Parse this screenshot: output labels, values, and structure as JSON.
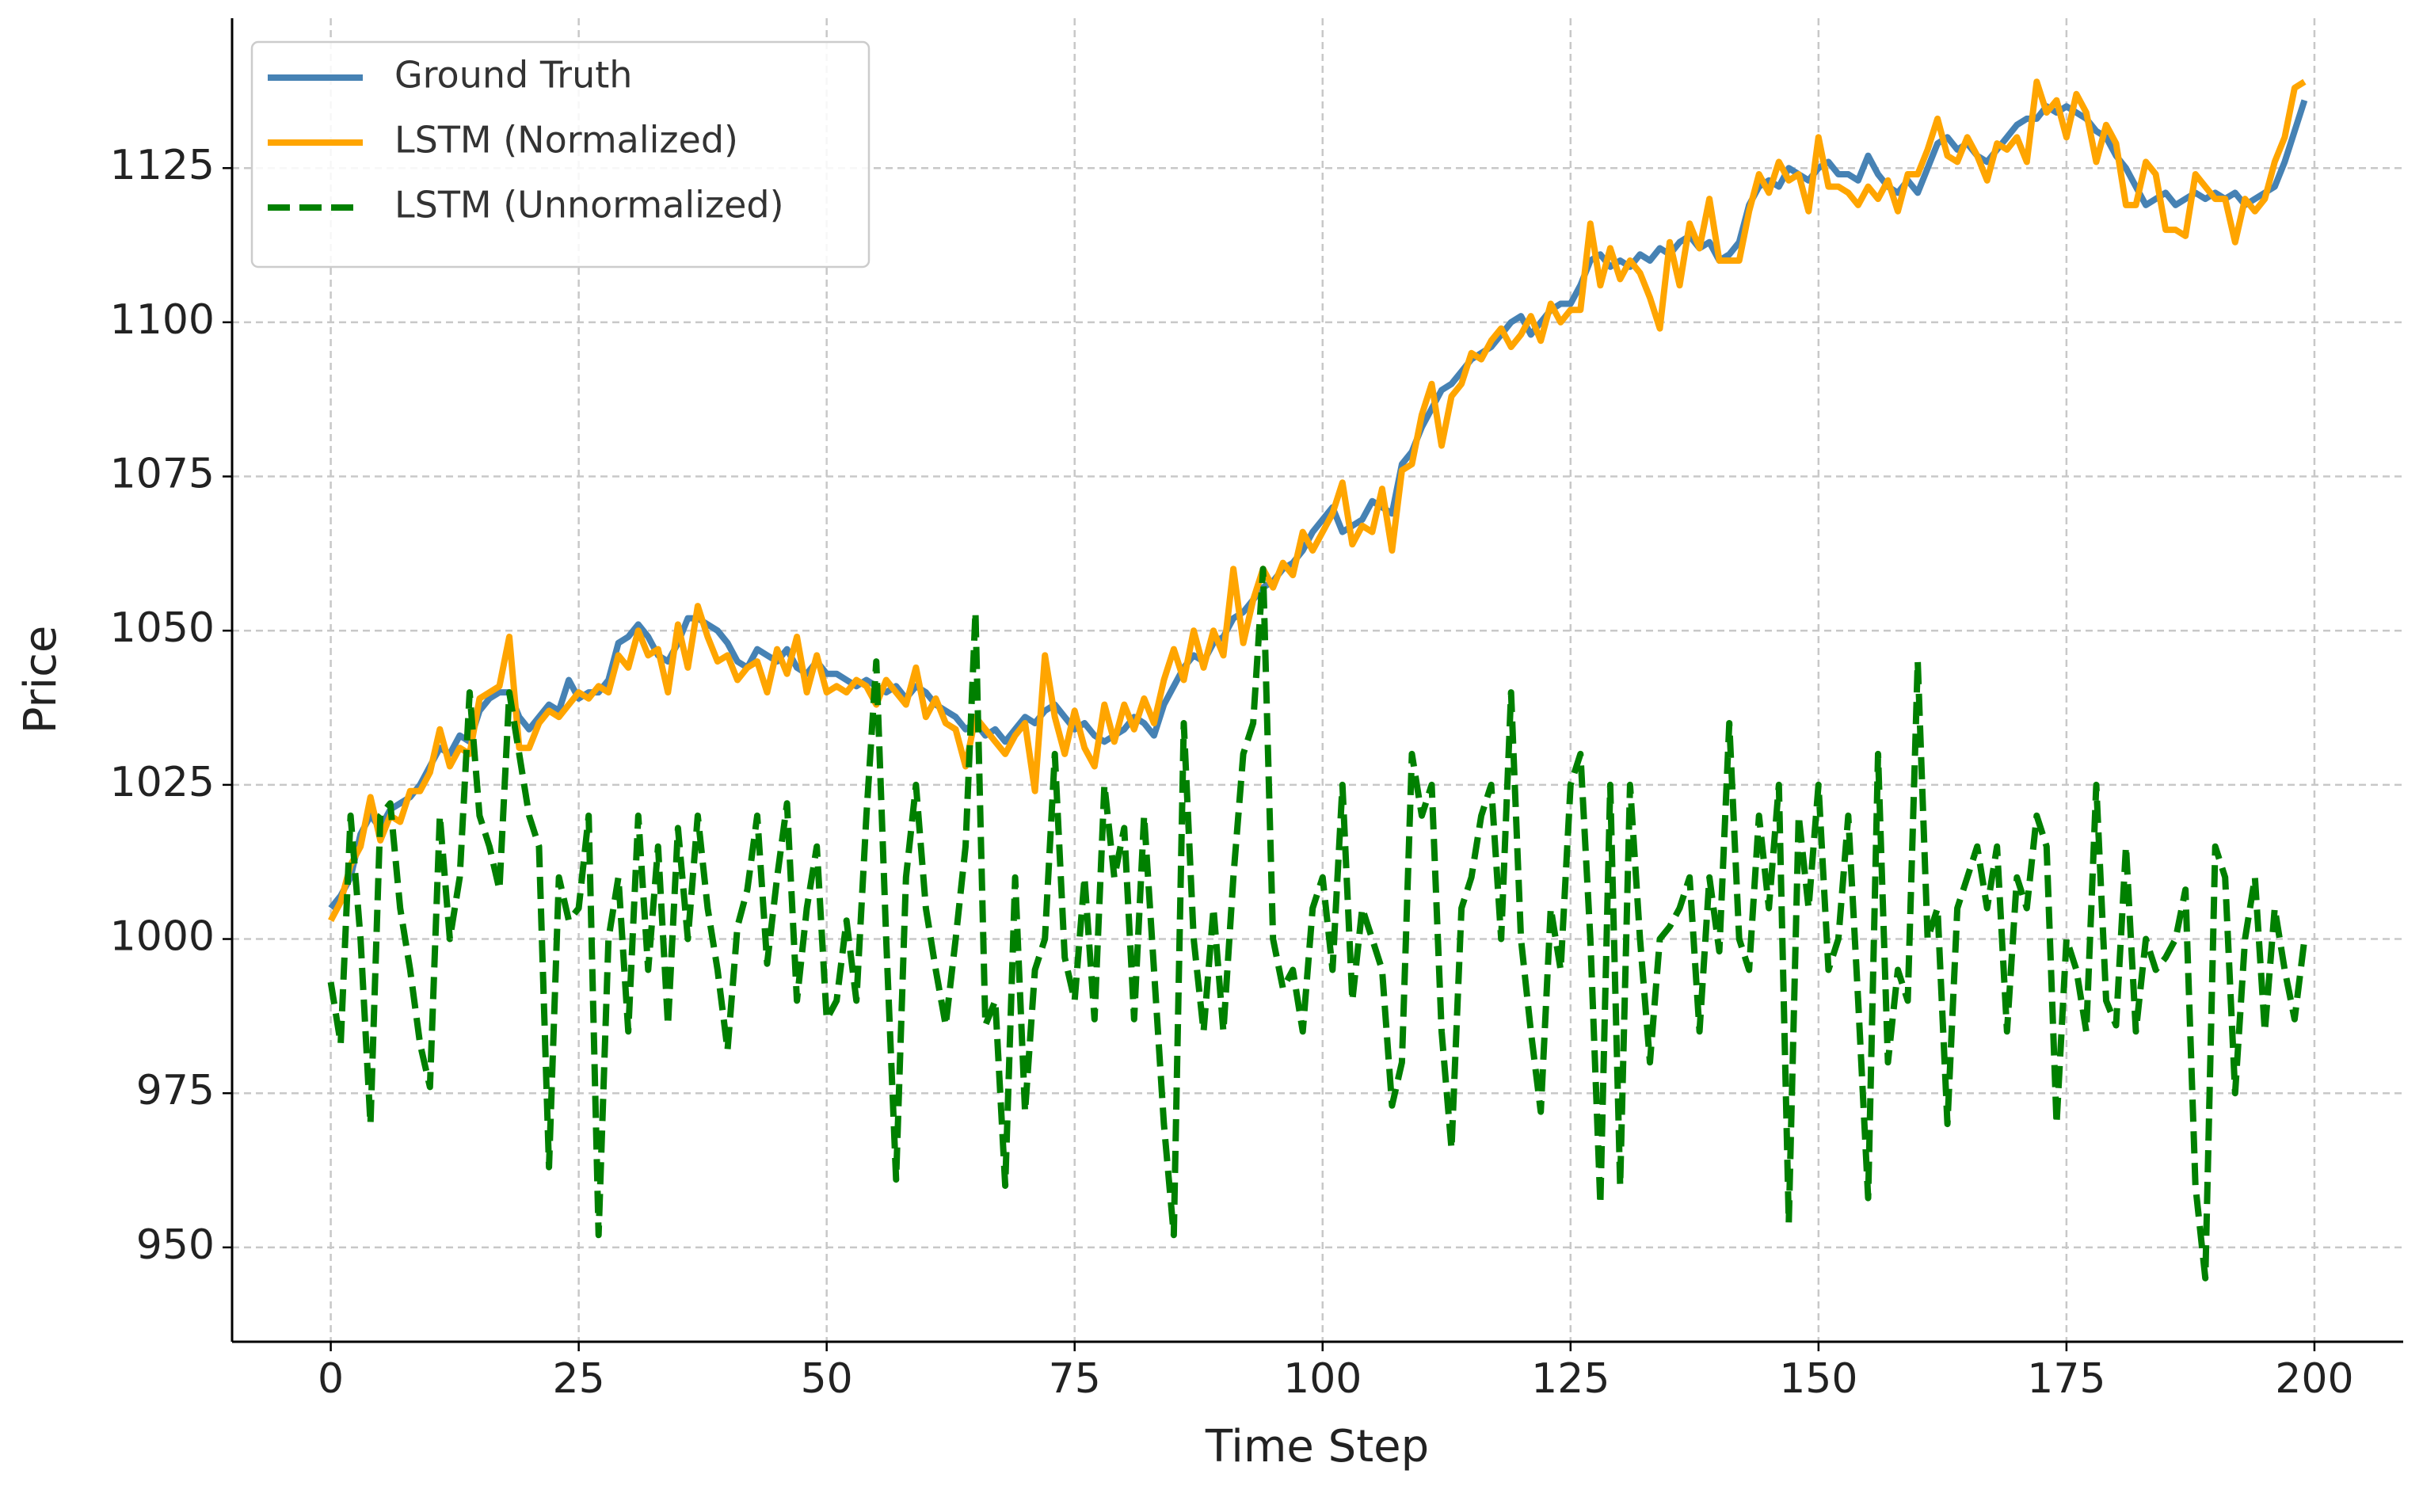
{
  "chart_data": {
    "type": "line",
    "xlabel": "Time Step",
    "ylabel": "Price",
    "xlim": [
      -9.95,
      208.95
    ],
    "ylim": [
      934.7,
      1149.3
    ],
    "xticks": [
      0,
      25,
      50,
      75,
      100,
      125,
      150,
      175,
      200
    ],
    "yticks": [
      950,
      975,
      1000,
      1025,
      1050,
      1075,
      1100,
      1125
    ],
    "grid": true,
    "legend": "upper left",
    "x": [
      0,
      1,
      2,
      3,
      4,
      5,
      6,
      7,
      8,
      9,
      10,
      11,
      12,
      13,
      14,
      15,
      16,
      17,
      18,
      19,
      20,
      21,
      22,
      23,
      24,
      25,
      26,
      27,
      28,
      29,
      30,
      31,
      32,
      33,
      34,
      35,
      36,
      37,
      38,
      39,
      40,
      41,
      42,
      43,
      44,
      45,
      46,
      47,
      48,
      49,
      50,
      51,
      52,
      53,
      54,
      55,
      56,
      57,
      58,
      59,
      60,
      61,
      62,
      63,
      64,
      65,
      66,
      67,
      68,
      69,
      70,
      71,
      72,
      73,
      74,
      75,
      76,
      77,
      78,
      79,
      80,
      81,
      82,
      83,
      84,
      85,
      86,
      87,
      88,
      89,
      90,
      91,
      92,
      93,
      94,
      95,
      96,
      97,
      98,
      99,
      100,
      101,
      102,
      103,
      104,
      105,
      106,
      107,
      108,
      109,
      110,
      111,
      112,
      113,
      114,
      115,
      116,
      117,
      118,
      119,
      120,
      121,
      122,
      123,
      124,
      125,
      126,
      127,
      128,
      129,
      130,
      131,
      132,
      133,
      134,
      135,
      136,
      137,
      138,
      139,
      140,
      141,
      142,
      143,
      144,
      145,
      146,
      147,
      148,
      149,
      150,
      151,
      152,
      153,
      154,
      155,
      156,
      157,
      158,
      159,
      160,
      161,
      162,
      163,
      164,
      165,
      166,
      167,
      168,
      169,
      170,
      171,
      172,
      173,
      174,
      175,
      176,
      177,
      178,
      179,
      180,
      181,
      182,
      183,
      184,
      185,
      186,
      187,
      188,
      189,
      190,
      191,
      192,
      193,
      194,
      195,
      196,
      197,
      198,
      199
    ],
    "series": [
      {
        "name": "Ground Truth",
        "color": "#4682b4",
        "dash": "solid",
        "values": [
          1005,
          1007,
          1010,
          1017,
          1020,
          1018,
          1021,
          1022,
          1023,
          1025,
          1028,
          1031,
          1030,
          1033,
          1032,
          1037,
          1039,
          1040,
          1040,
          1036,
          1034,
          1036,
          1038,
          1037,
          1042,
          1039,
          1040,
          1040,
          1042,
          1048,
          1049,
          1051,
          1049,
          1046,
          1045,
          1048,
          1052,
          1052,
          1051,
          1050,
          1048,
          1045,
          1044,
          1047,
          1046,
          1045,
          1047,
          1044,
          1043,
          1045,
          1043,
          1043,
          1042,
          1041,
          1042,
          1041,
          1040,
          1041,
          1039,
          1041,
          1040,
          1038,
          1037,
          1036,
          1034,
          1035,
          1033,
          1034,
          1032,
          1034,
          1036,
          1035,
          1037,
          1038,
          1036,
          1034,
          1035,
          1033,
          1032,
          1033,
          1034,
          1036,
          1035,
          1033,
          1038,
          1041,
          1044,
          1046,
          1045,
          1048,
          1049,
          1052,
          1053,
          1055,
          1057,
          1058,
          1060,
          1061,
          1063,
          1066,
          1068,
          1070,
          1066,
          1067,
          1068,
          1071,
          1070,
          1069,
          1077,
          1079,
          1083,
          1086,
          1089,
          1090,
          1092,
          1094,
          1095,
          1096,
          1098,
          1100,
          1101,
          1098,
          1100,
          1102,
          1103,
          1103,
          1106,
          1110,
          1111,
          1109,
          1110,
          1109,
          1111,
          1110,
          1112,
          1111,
          1113,
          1114,
          1112,
          1113,
          1110,
          1111,
          1113,
          1119,
          1122,
          1123,
          1122,
          1125,
          1124,
          1123,
          1125,
          1126,
          1124,
          1124,
          1123,
          1127,
          1124,
          1122,
          1121,
          1123,
          1121,
          1125,
          1129,
          1130,
          1128,
          1129,
          1127,
          1126,
          1128,
          1130,
          1132,
          1133,
          1133,
          1135,
          1134,
          1135,
          1134,
          1133,
          1131,
          1130,
          1127,
          1125,
          1122,
          1119,
          1120,
          1121,
          1119,
          1120,
          1121,
          1120,
          1121,
          1120,
          1121,
          1119,
          1120,
          1121,
          1122,
          1126,
          1131,
          1136
        ]
      },
      {
        "name": "LSTM (Normalized)",
        "color": "#ffa500",
        "dash": "solid",
        "values": [
          1003,
          1006,
          1012,
          1015,
          1023,
          1016,
          1020,
          1019,
          1024,
          1024,
          1027,
          1034,
          1028,
          1031,
          1030,
          1039,
          1040,
          1041,
          1049,
          1031,
          1031,
          1035,
          1037,
          1036,
          1038,
          1040,
          1039,
          1041,
          1040,
          1046,
          1044,
          1050,
          1046,
          1047,
          1040,
          1051,
          1044,
          1054,
          1049,
          1045,
          1046,
          1042,
          1044,
          1045,
          1040,
          1047,
          1043,
          1049,
          1040,
          1046,
          1040,
          1041,
          1040,
          1042,
          1041,
          1038,
          1042,
          1040,
          1038,
          1044,
          1036,
          1039,
          1035,
          1034,
          1028,
          1036,
          1034,
          1032,
          1030,
          1033,
          1035,
          1024,
          1046,
          1036,
          1030,
          1037,
          1031,
          1028,
          1038,
          1032,
          1038,
          1034,
          1039,
          1035,
          1042,
          1047,
          1042,
          1050,
          1044,
          1050,
          1046,
          1060,
          1048,
          1055,
          1060,
          1057,
          1061,
          1059,
          1066,
          1063,
          1066,
          1069,
          1074,
          1064,
          1067,
          1066,
          1073,
          1063,
          1076,
          1077,
          1085,
          1090,
          1080,
          1088,
          1090,
          1095,
          1094,
          1097,
          1099,
          1096,
          1098,
          1101,
          1097,
          1103,
          1100,
          1102,
          1102,
          1116,
          1106,
          1112,
          1107,
          1110,
          1108,
          1104,
          1099,
          1113,
          1106,
          1116,
          1112,
          1120,
          1110,
          1110,
          1110,
          1118,
          1124,
          1121,
          1126,
          1123,
          1124,
          1118,
          1130,
          1122,
          1122,
          1121,
          1119,
          1122,
          1120,
          1123,
          1118,
          1124,
          1124,
          1128,
          1133,
          1127,
          1126,
          1130,
          1127,
          1123,
          1129,
          1128,
          1130,
          1126,
          1139,
          1134,
          1136,
          1130,
          1137,
          1134,
          1126,
          1132,
          1129,
          1119,
          1119,
          1126,
          1124,
          1115,
          1115,
          1114,
          1124,
          1122,
          1120,
          1120,
          1113,
          1120,
          1118,
          1120,
          1126,
          1130,
          1138,
          1139
        ]
      },
      {
        "name": "LSTM (Unnormalized)",
        "color": "#008000",
        "dash": "dashed",
        "values": [
          993,
          983,
          1020,
          1000,
          970,
          1020,
          1022,
          1005,
          995,
          983,
          976,
          1020,
          1000,
          1010,
          1040,
          1020,
          1015,
          1008,
          1040,
          1030,
          1020,
          1015,
          963,
          1010,
          1003,
          1005,
          1020,
          952,
          1000,
          1010,
          985,
          1020,
          995,
          1015,
          986,
          1018,
          1000,
          1020,
          1005,
          995,
          982,
          1002,
          1008,
          1020,
          996,
          1010,
          1022,
          990,
          1005,
          1015,
          987,
          990,
          1003,
          990,
          1020,
          1045,
          1000,
          961,
          1010,
          1025,
          1005,
          995,
          986,
          1000,
          1015,
          1053,
          986,
          990,
          960,
          1010,
          972,
          995,
          1000,
          1030,
          997,
          990,
          1010,
          987,
          1025,
          1010,
          1018,
          987,
          1020,
          995,
          970,
          952,
          1035,
          1000,
          985,
          1005,
          985,
          1010,
          1030,
          1035,
          1060,
          1000,
          992,
          995,
          985,
          1005,
          1010,
          995,
          1025,
          990,
          1005,
          1000,
          995,
          973,
          980,
          1030,
          1020,
          1025,
          985,
          966,
          1005,
          1010,
          1020,
          1025,
          1000,
          1040,
          1000,
          985,
          972,
          1005,
          995,
          1025,
          1030,
          1000,
          957,
          1025,
          960,
          1025,
          1000,
          980,
          1000,
          1002,
          1005,
          1010,
          985,
          1010,
          998,
          1035,
          1000,
          995,
          1020,
          1005,
          1025,
          954,
          1020,
          1005,
          1025,
          995,
          1000,
          1020,
          990,
          958,
          1030,
          980,
          995,
          990,
          1045,
          1000,
          1005,
          970,
          1005,
          1010,
          1015,
          1005,
          1015,
          985,
          1010,
          1005,
          1020,
          1015,
          970,
          1000,
          995,
          985,
          1025,
          990,
          986,
          1015,
          985,
          1000,
          995,
          997,
          1000,
          1008,
          960,
          945,
          1015,
          1010,
          975,
          1000,
          1010,
          985,
          1005,
          995,
          987,
          1000
        ]
      }
    ]
  }
}
